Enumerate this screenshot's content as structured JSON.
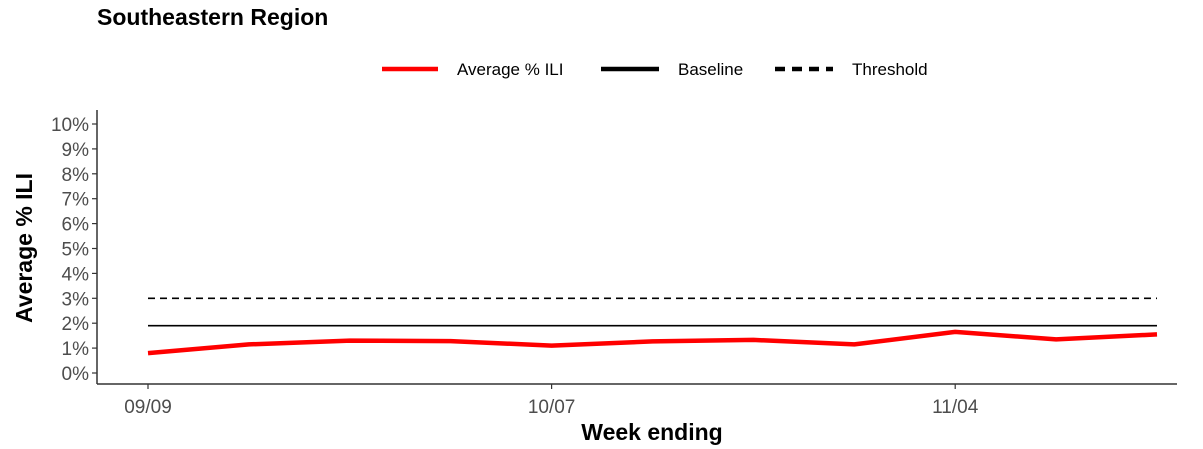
{
  "chart_data": {
    "type": "line",
    "title": "Southeastern Region",
    "xlabel": "Week ending",
    "ylabel": "Average % ILI",
    "x": [
      "09/09",
      "09/16",
      "09/23",
      "09/30",
      "10/07",
      "10/14",
      "10/21",
      "10/28",
      "11/04",
      "11/11",
      "11/18"
    ],
    "x_tick_labels": [
      "09/09",
      "10/07",
      "11/04"
    ],
    "y_ticks": [
      "0%",
      "1%",
      "2%",
      "3%",
      "4%",
      "5%",
      "6%",
      "7%",
      "8%",
      "9%",
      "10%"
    ],
    "ylim": [
      0,
      10
    ],
    "grid": false,
    "legend_position": "top",
    "series": [
      {
        "name": "Average % ILI",
        "color": "#ff0000",
        "style": "solid",
        "values": [
          0.8,
          1.15,
          1.3,
          1.28,
          1.1,
          1.27,
          1.33,
          1.15,
          1.65,
          1.35,
          1.55
        ]
      },
      {
        "name": "Baseline",
        "color": "#000000",
        "style": "solid",
        "values": [
          1.9,
          1.9,
          1.9,
          1.9,
          1.9,
          1.9,
          1.9,
          1.9,
          1.9,
          1.9,
          1.9
        ]
      },
      {
        "name": "Threshold",
        "color": "#000000",
        "style": "dashed",
        "values": [
          3.0,
          3.0,
          3.0,
          3.0,
          3.0,
          3.0,
          3.0,
          3.0,
          3.0,
          3.0,
          3.0
        ]
      }
    ]
  }
}
